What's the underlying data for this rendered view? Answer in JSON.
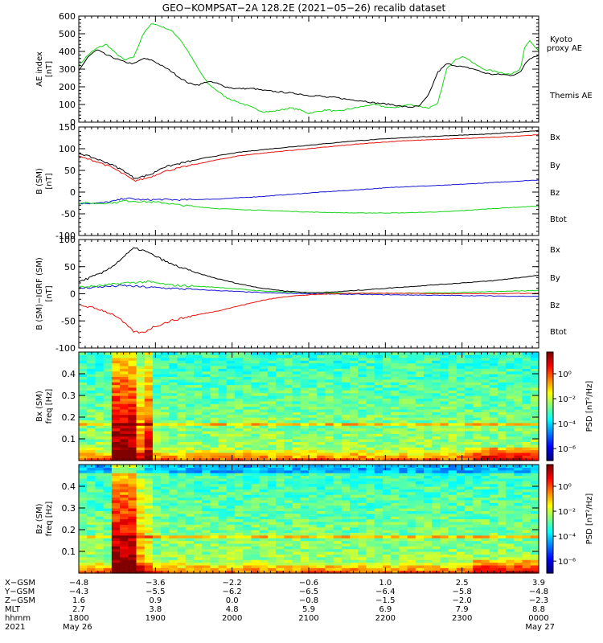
{
  "title": "GEO−KOMPSAT−2A 128.2E (2021−05−26) recalib dataset",
  "colors": {
    "black": "#000000",
    "red": "#e8120c",
    "green": "#18d418",
    "blue": "#1515d2"
  },
  "chart_data": [
    {
      "type": "line",
      "id": "ae",
      "ylabel_lines": [
        "AE index",
        "[nT]"
      ],
      "ylim": [
        0,
        600
      ],
      "yticks": [
        0,
        100,
        200,
        300,
        400,
        500,
        600
      ],
      "xlim": [
        0,
        1
      ],
      "series": [
        {
          "name": "Kyoto proxy AE",
          "label_lines": [
            "Kyoto",
            "proxy AE"
          ],
          "color": "#18d418",
          "x": [
            0,
            0.02,
            0.04,
            0.06,
            0.08,
            0.1,
            0.12,
            0.14,
            0.16,
            0.18,
            0.2,
            0.22,
            0.24,
            0.26,
            0.28,
            0.3,
            0.32,
            0.34,
            0.36,
            0.38,
            0.4,
            0.42,
            0.44,
            0.46,
            0.48,
            0.5,
            0.52,
            0.54,
            0.56,
            0.58,
            0.6,
            0.62,
            0.64,
            0.66,
            0.68,
            0.7,
            0.72,
            0.74,
            0.76,
            0.78,
            0.8,
            0.82,
            0.84,
            0.86,
            0.88,
            0.9,
            0.92,
            0.94,
            0.96,
            0.97,
            0.98,
            1.0
          ],
          "y": [
            320,
            380,
            420,
            440,
            390,
            350,
            370,
            500,
            560,
            540,
            520,
            470,
            390,
            300,
            220,
            180,
            140,
            120,
            100,
            80,
            60,
            60,
            70,
            80,
            70,
            50,
            60,
            70,
            60,
            70,
            80,
            90,
            100,
            90,
            80,
            90,
            100,
            90,
            80,
            100,
            300,
            360,
            370,
            330,
            300,
            290,
            280,
            270,
            300,
            430,
            460,
            400
          ]
        },
        {
          "name": "Themis AE",
          "label_lines": [
            "Themis AE"
          ],
          "color": "#000000",
          "x": [
            0,
            0.02,
            0.04,
            0.06,
            0.08,
            0.1,
            0.12,
            0.14,
            0.16,
            0.18,
            0.2,
            0.22,
            0.24,
            0.26,
            0.28,
            0.3,
            0.32,
            0.34,
            0.36,
            0.38,
            0.4,
            0.42,
            0.44,
            0.46,
            0.48,
            0.5,
            0.52,
            0.54,
            0.56,
            0.58,
            0.6,
            0.62,
            0.64,
            0.66,
            0.68,
            0.7,
            0.72,
            0.74,
            0.76,
            0.78,
            0.8,
            0.82,
            0.84,
            0.86,
            0.88,
            0.9,
            0.92,
            0.94,
            0.96,
            0.97,
            0.98,
            1.0
          ],
          "y": [
            290,
            370,
            410,
            380,
            360,
            340,
            330,
            360,
            350,
            320,
            290,
            250,
            220,
            210,
            230,
            220,
            200,
            190,
            190,
            190,
            180,
            175,
            170,
            165,
            160,
            150,
            150,
            140,
            140,
            130,
            125,
            120,
            110,
            105,
            100,
            90,
            85,
            90,
            150,
            280,
            330,
            320,
            310,
            300,
            280,
            270,
            270,
            265,
            280,
            330,
            360,
            380
          ]
        }
      ]
    },
    {
      "type": "line",
      "id": "bsm",
      "ylabel_lines": [
        "B (SM)",
        "[nT]"
      ],
      "ylim": [
        -100,
        150
      ],
      "yticks": [
        -100,
        -50,
        0,
        50,
        100,
        150
      ],
      "xlim": [
        0,
        1
      ],
      "series": [
        {
          "name": "Bx",
          "color": "#1515d2",
          "x": [
            0,
            0.05,
            0.08,
            0.1,
            0.14,
            0.18,
            0.22,
            0.3,
            0.4,
            0.5,
            0.6,
            0.7,
            0.8,
            0.9,
            1.0
          ],
          "y": [
            -26,
            -25,
            -20,
            -14,
            -18,
            -17,
            -18,
            -16,
            -10,
            -2,
            5,
            12,
            16,
            22,
            28
          ]
        },
        {
          "name": "By",
          "color": "#18d418",
          "x": [
            0,
            0.05,
            0.08,
            0.1,
            0.14,
            0.18,
            0.22,
            0.3,
            0.4,
            0.5,
            0.6,
            0.7,
            0.8,
            0.9,
            1.0
          ],
          "y": [
            -25,
            -26,
            -24,
            -20,
            -22,
            -24,
            -30,
            -38,
            -42,
            -46,
            -48,
            -48,
            -45,
            -38,
            -32
          ]
        },
        {
          "name": "Bz",
          "color": "#e8120c",
          "x": [
            0,
            0.04,
            0.07,
            0.1,
            0.12,
            0.14,
            0.16,
            0.18,
            0.22,
            0.28,
            0.35,
            0.42,
            0.5,
            0.6,
            0.7,
            0.8,
            0.9,
            1.0
          ],
          "y": [
            82,
            70,
            58,
            40,
            26,
            30,
            36,
            46,
            56,
            70,
            84,
            92,
            100,
            110,
            118,
            122,
            126,
            132
          ]
        },
        {
          "name": "Btot",
          "color": "#000000",
          "x": [
            0,
            0.04,
            0.07,
            0.1,
            0.12,
            0.14,
            0.16,
            0.18,
            0.22,
            0.28,
            0.35,
            0.42,
            0.5,
            0.6,
            0.7,
            0.8,
            0.9,
            1.0
          ],
          "y": [
            90,
            76,
            64,
            48,
            32,
            36,
            42,
            56,
            66,
            80,
            92,
            100,
            108,
            118,
            125,
            130,
            134,
            142
          ]
        }
      ]
    },
    {
      "type": "line",
      "id": "bdiff",
      "ylabel_lines": [
        "B (SM)−IGRF (SM)",
        "[nT]"
      ],
      "ylim": [
        -100,
        100
      ],
      "yticks": [
        -100,
        -50,
        0,
        50,
        100
      ],
      "xlim": [
        0,
        1
      ],
      "series": [
        {
          "name": "Bx",
          "color": "#1515d2",
          "x": [
            0,
            0.05,
            0.1,
            0.15,
            0.2,
            0.3,
            0.4,
            0.5,
            0.6,
            0.7,
            0.8,
            0.9,
            1.0
          ],
          "y": [
            10,
            13,
            15,
            12,
            10,
            6,
            2,
            0,
            -1,
            -2,
            -3,
            -4,
            -5
          ]
        },
        {
          "name": "By",
          "color": "#18d418",
          "x": [
            0,
            0.05,
            0.1,
            0.15,
            0.2,
            0.3,
            0.4,
            0.5,
            0.6,
            0.7,
            0.8,
            0.9,
            1.0
          ],
          "y": [
            12,
            15,
            20,
            22,
            16,
            12,
            5,
            2,
            1,
            1,
            2,
            4,
            6
          ]
        },
        {
          "name": "Bz",
          "color": "#e8120c",
          "x": [
            0,
            0.05,
            0.08,
            0.1,
            0.12,
            0.14,
            0.16,
            0.2,
            0.25,
            0.3,
            0.35,
            0.4,
            0.45,
            0.5,
            0.55,
            0.6,
            0.7,
            0.8,
            0.9,
            1.0
          ],
          "y": [
            -20,
            -30,
            -40,
            -55,
            -70,
            -72,
            -62,
            -50,
            -40,
            -32,
            -22,
            -12,
            -5,
            -2,
            0,
            1,
            1,
            0,
            0,
            1
          ]
        },
        {
          "name": "Btot",
          "color": "#000000",
          "x": [
            0,
            0.05,
            0.08,
            0.1,
            0.12,
            0.14,
            0.16,
            0.2,
            0.25,
            0.3,
            0.35,
            0.4,
            0.45,
            0.5,
            0.55,
            0.6,
            0.7,
            0.8,
            0.9,
            1.0
          ],
          "y": [
            22,
            38,
            55,
            70,
            84,
            80,
            72,
            55,
            40,
            28,
            18,
            10,
            5,
            2,
            3,
            6,
            12,
            18,
            24,
            34
          ]
        }
      ]
    },
    {
      "type": "heatmap",
      "id": "bx_psd",
      "ylabel_lines": [
        "Bx (SM)",
        "freq [Hz]"
      ],
      "ylim": [
        0,
        0.5
      ],
      "yticks": [
        0.1,
        0.2,
        0.3,
        0.4
      ],
      "colorbar_label": "PSD [nT²/Hz]",
      "colorbar_ticks": [
        "10⁰",
        "10⁻²",
        "10⁻⁴",
        "10⁻⁶"
      ]
    },
    {
      "type": "heatmap",
      "id": "bz_psd",
      "ylabel_lines": [
        "Bz (SM)",
        "freq [Hz]"
      ],
      "ylim": [
        0,
        0.5
      ],
      "yticks": [
        0.1,
        0.2,
        0.3,
        0.4
      ],
      "colorbar_label": "PSD [nT²/Hz]",
      "colorbar_ticks": [
        "10⁰",
        "10⁻²",
        "10⁻⁴",
        "10⁻⁶"
      ]
    }
  ],
  "ephemeris": {
    "row_labels": [
      "X−GSM",
      "Y−GSM",
      "Z−GSM",
      "MLT",
      "hhmm",
      "2021"
    ],
    "columns": [
      [
        "−4.8",
        "−4.3",
        "1.6",
        "2.7",
        "1800",
        "May 26"
      ],
      [
        "−3.6",
        "−5.5",
        "0.9",
        "3.8",
        "1900",
        ""
      ],
      [
        "−2.2",
        "−6.2",
        "0.0",
        "4.8",
        "2000",
        ""
      ],
      [
        "−0.6",
        "−6.5",
        "−0.8",
        "5.9",
        "2100",
        ""
      ],
      [
        "1.0",
        "−6.4",
        "−1.5",
        "6.9",
        "2200",
        ""
      ],
      [
        "2.5",
        "−5.8",
        "−2.0",
        "7.9",
        "2300",
        ""
      ],
      [
        "3.9",
        "−4.8",
        "−2.3",
        "8.8",
        "0000",
        "May 27"
      ]
    ]
  }
}
